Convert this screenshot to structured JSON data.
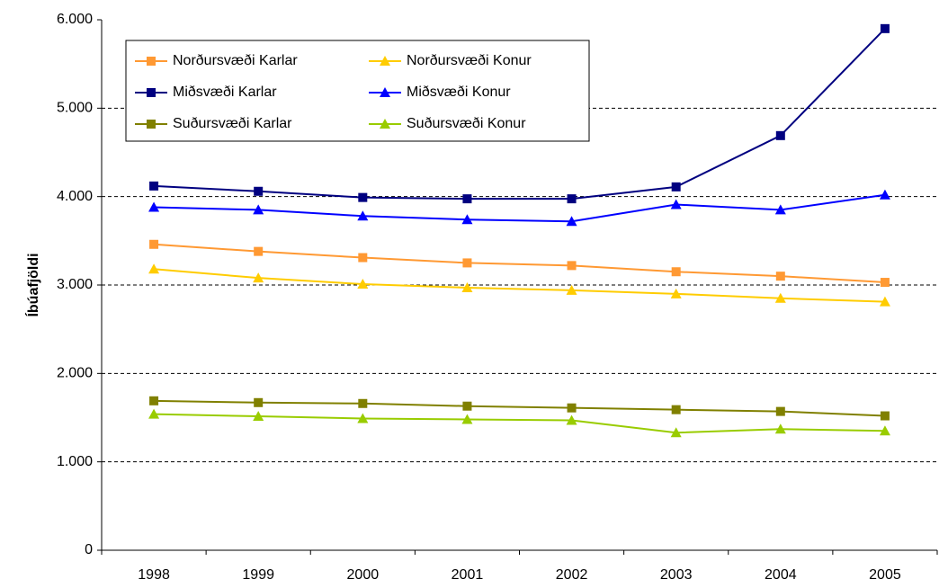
{
  "chart_data": {
    "type": "line",
    "y_label": "Íbúafjöldi",
    "categories": [
      "1998",
      "1999",
      "2000",
      "2001",
      "2002",
      "2003",
      "2004",
      "2005"
    ],
    "series": [
      {
        "name": "Norðursvæði Karlar",
        "color": "#ff9933",
        "marker": "square",
        "values": [
          3460,
          3380,
          3310,
          3250,
          3220,
          3150,
          3100,
          3030
        ]
      },
      {
        "name": "Norðursvæði Konur",
        "color": "#ffcc00",
        "marker": "triangle",
        "values": [
          3180,
          3080,
          3010,
          2970,
          2940,
          2900,
          2850,
          2810
        ]
      },
      {
        "name": "Miðsvæði Karlar",
        "color": "#000080",
        "marker": "square",
        "values": [
          4120,
          4060,
          3990,
          3975,
          3975,
          4110,
          4690,
          5900
        ]
      },
      {
        "name": "Miðsvæði Konur",
        "color": "#0000ff",
        "marker": "triangle",
        "values": [
          3880,
          3850,
          3780,
          3740,
          3720,
          3910,
          3850,
          4020
        ]
      },
      {
        "name": "Suðursvæði Karlar",
        "color": "#808000",
        "marker": "square",
        "values": [
          1690,
          1670,
          1660,
          1630,
          1610,
          1590,
          1570,
          1520
        ]
      },
      {
        "name": "Suðursvæði Konur",
        "color": "#99cc00",
        "marker": "triangle",
        "values": [
          1540,
          1515,
          1490,
          1480,
          1470,
          1330,
          1370,
          1350
        ]
      }
    ],
    "ylim": [
      0,
      6000
    ],
    "yticks": [
      0,
      {
        "value": 1000,
        "label": "1.000"
      },
      {
        "value": 2000,
        "label": "2.000"
      },
      {
        "value": 3000,
        "label": "3.000"
      },
      {
        "value": 4000,
        "label": "4.000"
      },
      {
        "value": 5000,
        "label": "5.000"
      },
      {
        "value": 6000,
        "label": "6.000"
      }
    ],
    "grid": true,
    "legend": "top-left"
  }
}
